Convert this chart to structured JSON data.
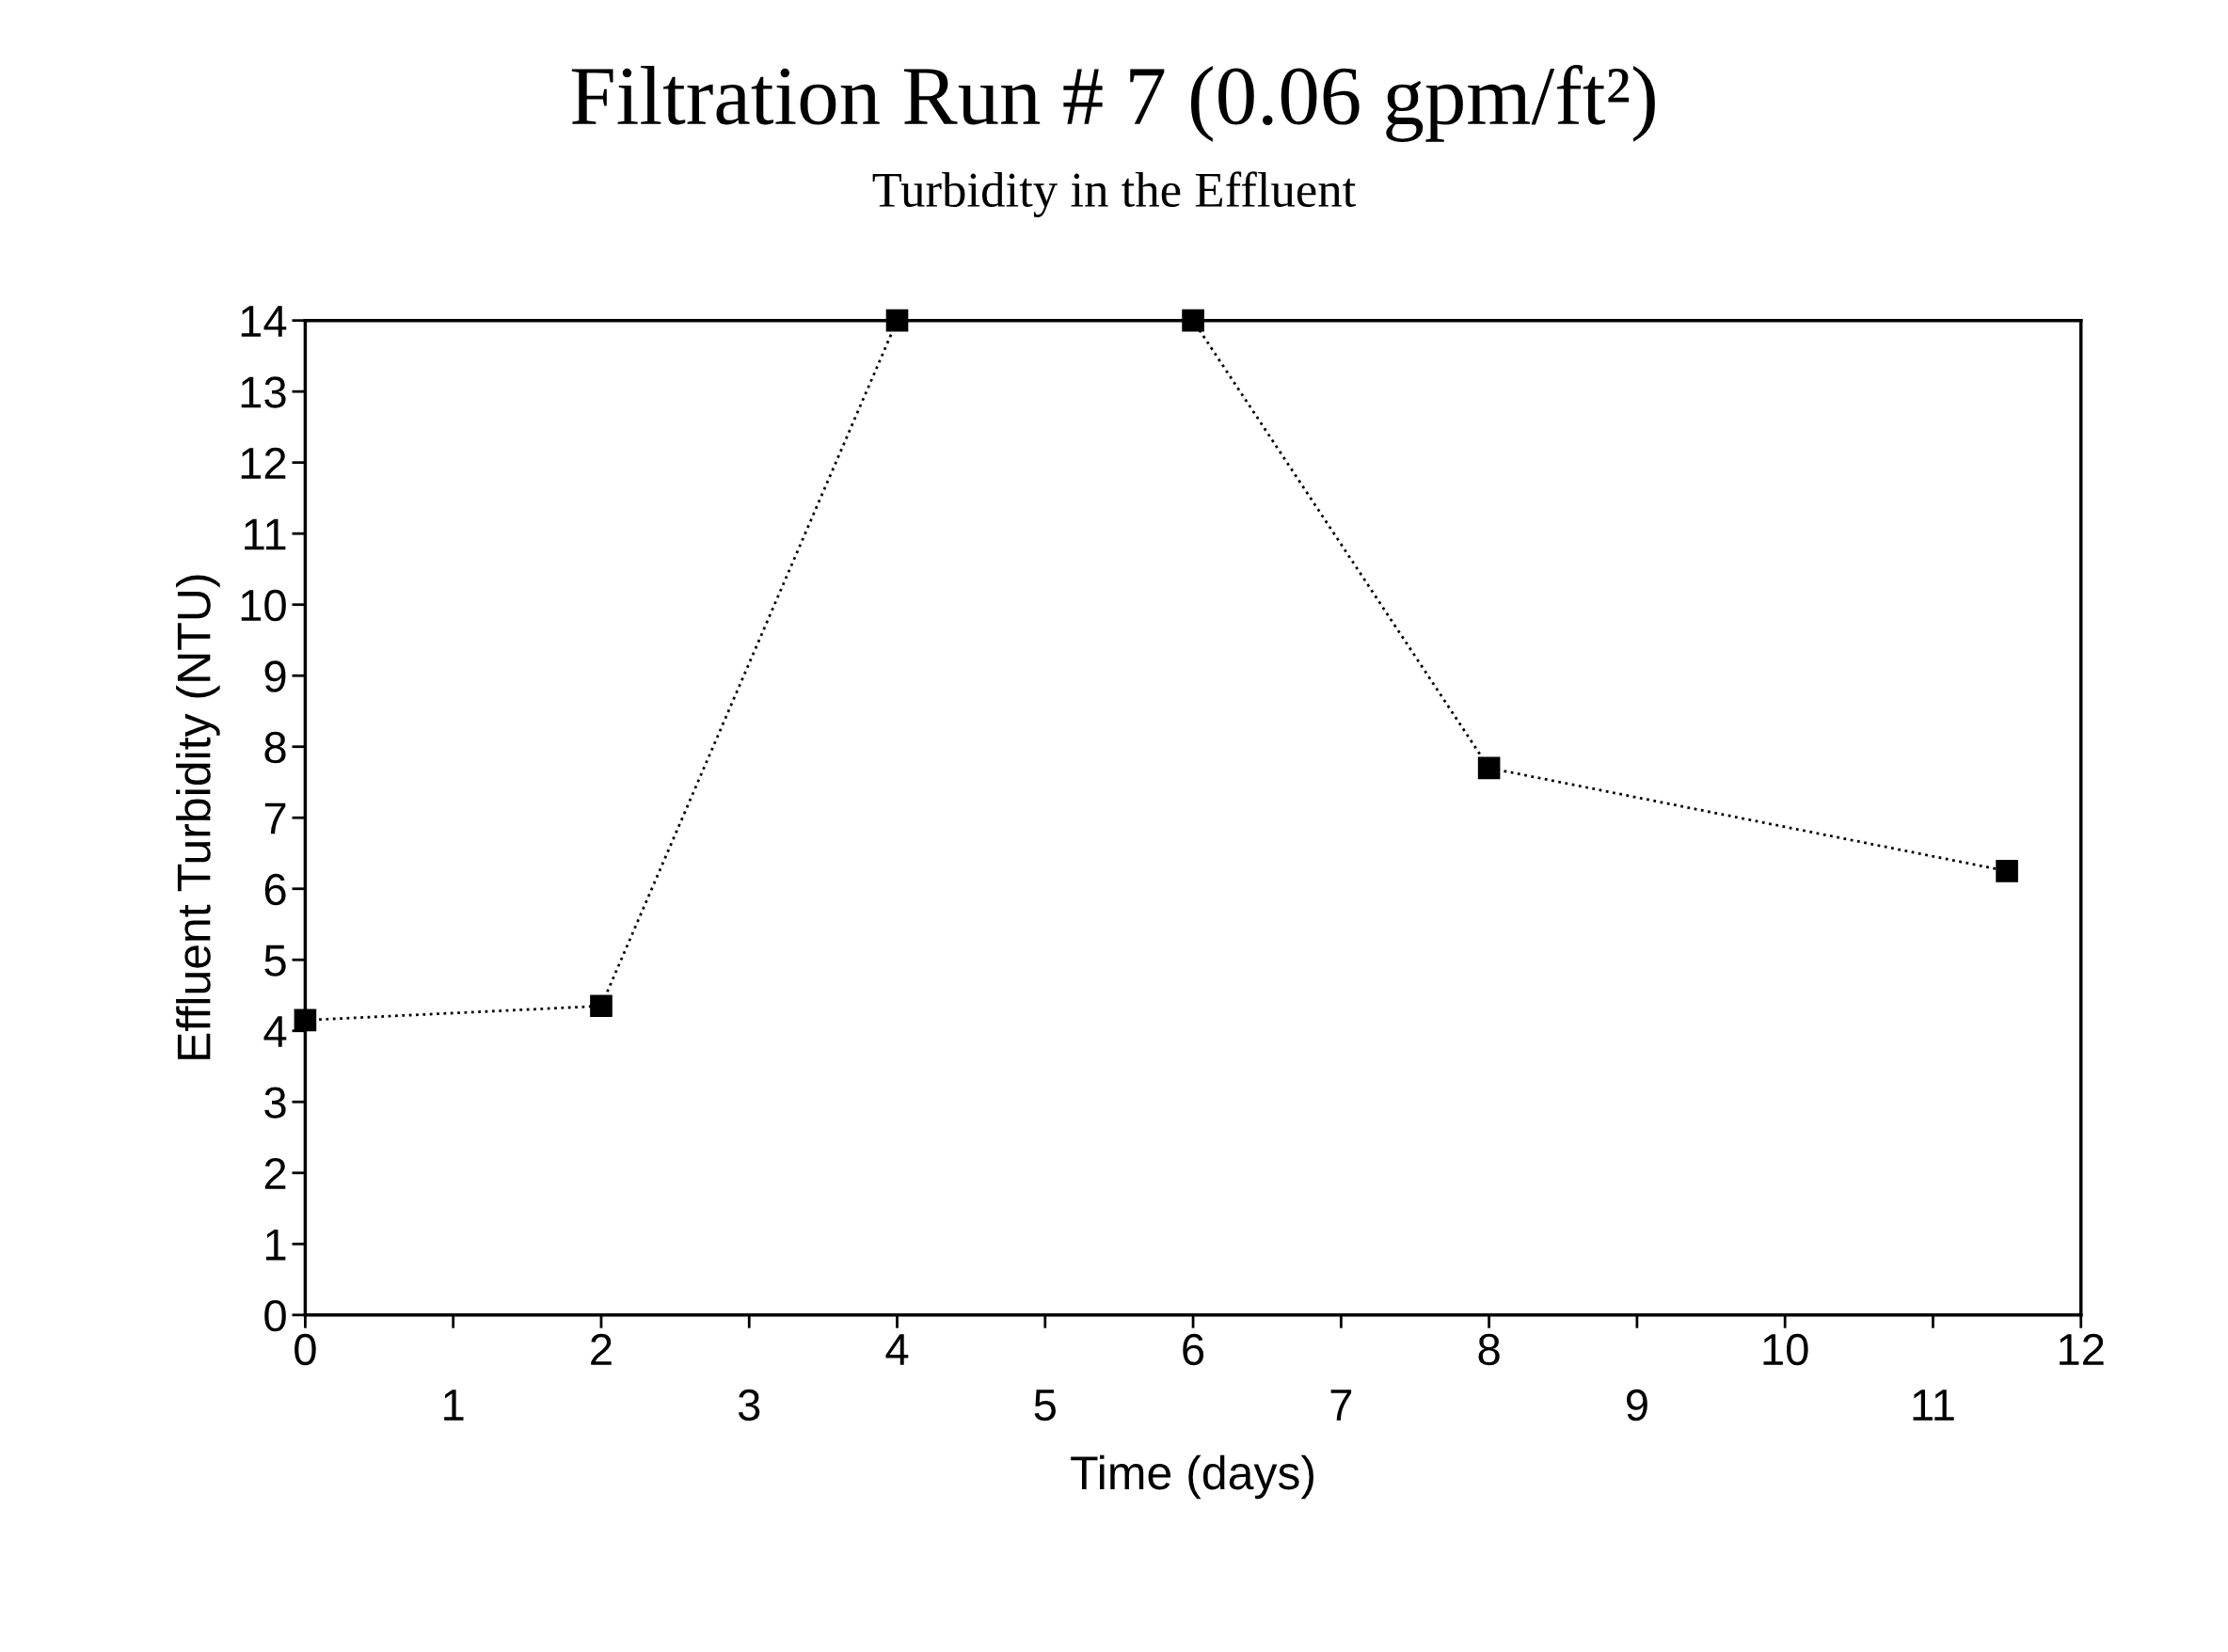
{
  "chart_data": {
    "type": "line",
    "title": "Filtration Run # 7 (0.06 gpm/ft²)",
    "subtitle": "Turbidity in the Effluent",
    "xlabel": "Time (days)",
    "ylabel": "Effluent Turbidity (NTU)",
    "x": [
      0,
      2,
      4,
      6,
      8,
      11.5
    ],
    "series": [
      {
        "color": "#000000",
        "values": [
          4.15,
          4.35,
          14,
          14,
          7.7,
          6.25
        ]
      }
    ],
    "xlim": [
      0,
      12
    ],
    "xticks": [
      0,
      {
        "value": 1,
        "label": null
      },
      2,
      {
        "value": 3,
        "label": null
      },
      4,
      {
        "value": 5,
        "label": null
      },
      6,
      {
        "value": 7,
        "label": null
      },
      8,
      {
        "value": 9,
        "label": null
      },
      10,
      {
        "value": 11,
        "label": null
      },
      12
    ],
    "x2lim": [
      0,
      12
    ],
    "x2ticks": [
      1,
      3,
      5,
      7,
      9,
      11
    ],
    "ylim": [
      0,
      14
    ],
    "yticks": [
      0,
      1,
      2,
      3,
      4,
      5,
      6,
      7,
      8,
      9,
      10,
      11,
      12,
      13,
      14
    ],
    "marker": "square",
    "line_style": "dotted",
    "grid": false,
    "legend": false
  }
}
